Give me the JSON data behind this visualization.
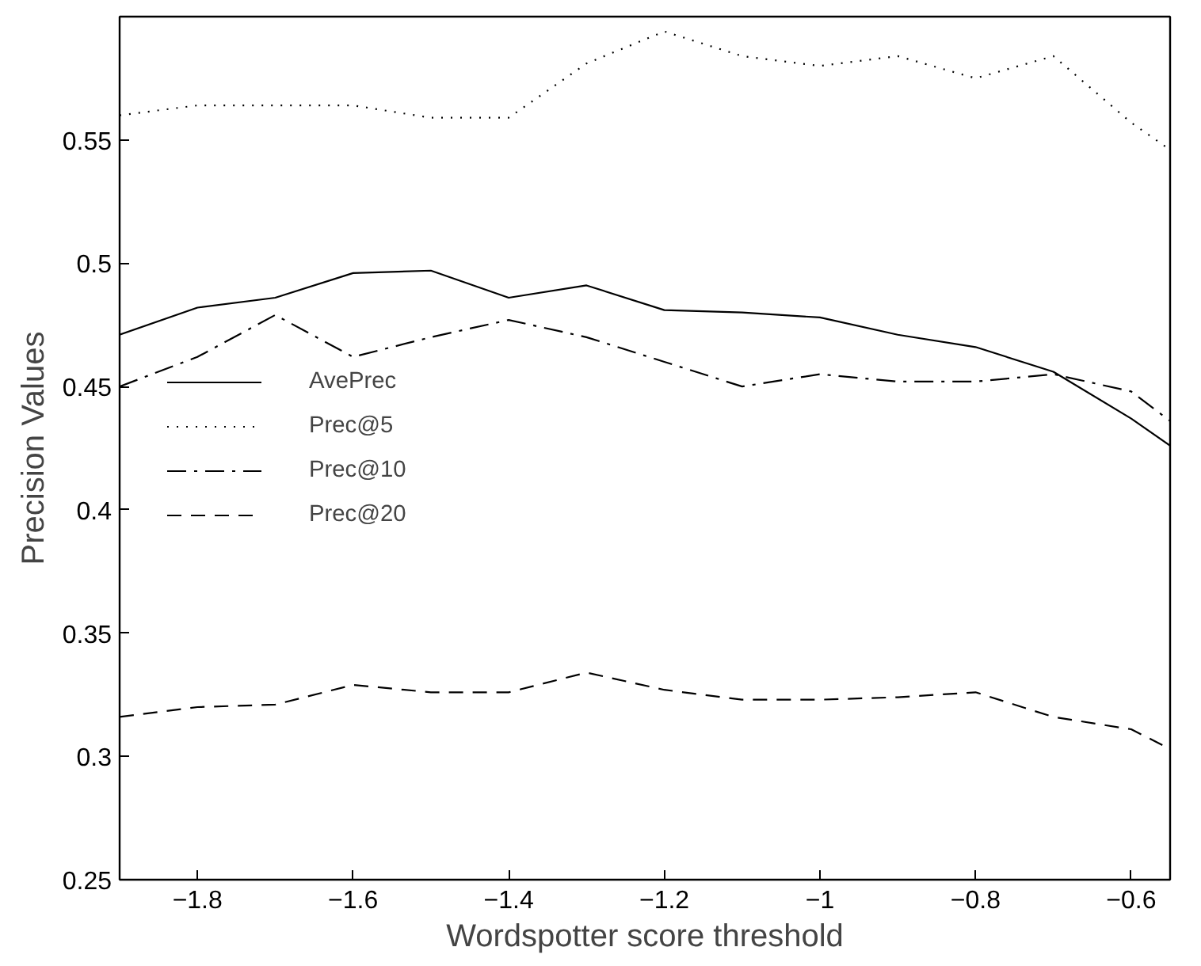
{
  "chart_data": {
    "type": "line",
    "xlabel": "Wordspotter score threshold",
    "ylabel": "Precision Values",
    "x": [
      -1.9,
      -1.8,
      -1.7,
      -1.6,
      -1.5,
      -1.4,
      -1.3,
      -1.2,
      -1.1,
      -1.0,
      -0.9,
      -0.8,
      -0.7,
      -0.6,
      -0.55
    ],
    "series": [
      {
        "name": "AvePrec",
        "color": "#000000",
        "line_style": "solid",
        "values": [
          0.471,
          0.482,
          0.486,
          0.496,
          0.497,
          0.486,
          0.491,
          0.481,
          0.48,
          0.478,
          0.471,
          0.466,
          0.456,
          0.437,
          0.426
        ]
      },
      {
        "name": "Prec@5",
        "color": "#000000",
        "line_style": "dotted",
        "values": [
          0.56,
          0.564,
          0.564,
          0.564,
          0.559,
          0.559,
          0.581,
          0.594,
          0.584,
          0.58,
          0.584,
          0.575,
          0.584,
          0.557,
          0.546
        ]
      },
      {
        "name": "Prec@10",
        "color": "#000000",
        "line_style": "dashdot",
        "values": [
          0.45,
          0.462,
          0.479,
          0.462,
          0.47,
          0.477,
          0.47,
          0.46,
          0.45,
          0.455,
          0.452,
          0.452,
          0.455,
          0.448,
          0.436
        ]
      },
      {
        "name": "Prec@20",
        "color": "#000000",
        "line_style": "dashed",
        "values": [
          0.316,
          0.32,
          0.321,
          0.329,
          0.326,
          0.326,
          0.334,
          0.327,
          0.323,
          0.323,
          0.324,
          0.326,
          0.316,
          0.311,
          0.303
        ]
      }
    ],
    "xlim": [
      -1.9,
      -0.55
    ],
    "ylim": [
      0.25,
      0.6
    ],
    "xticks": [
      {
        "value": -1.8,
        "label": "−1.8"
      },
      {
        "value": -1.6,
        "label": "−1.6"
      },
      {
        "value": -1.4,
        "label": "−1.4"
      },
      {
        "value": -1.2,
        "label": "−1.2"
      },
      {
        "value": -1.0,
        "label": "−1"
      },
      {
        "value": -0.8,
        "label": "−0.8"
      },
      {
        "value": -0.6,
        "label": "−0.6"
      }
    ],
    "yticks": [
      0.25,
      0.3,
      0.35,
      0.4,
      0.45,
      0.5,
      0.55
    ],
    "legend": "left",
    "grid": false,
    "marker": "none"
  }
}
